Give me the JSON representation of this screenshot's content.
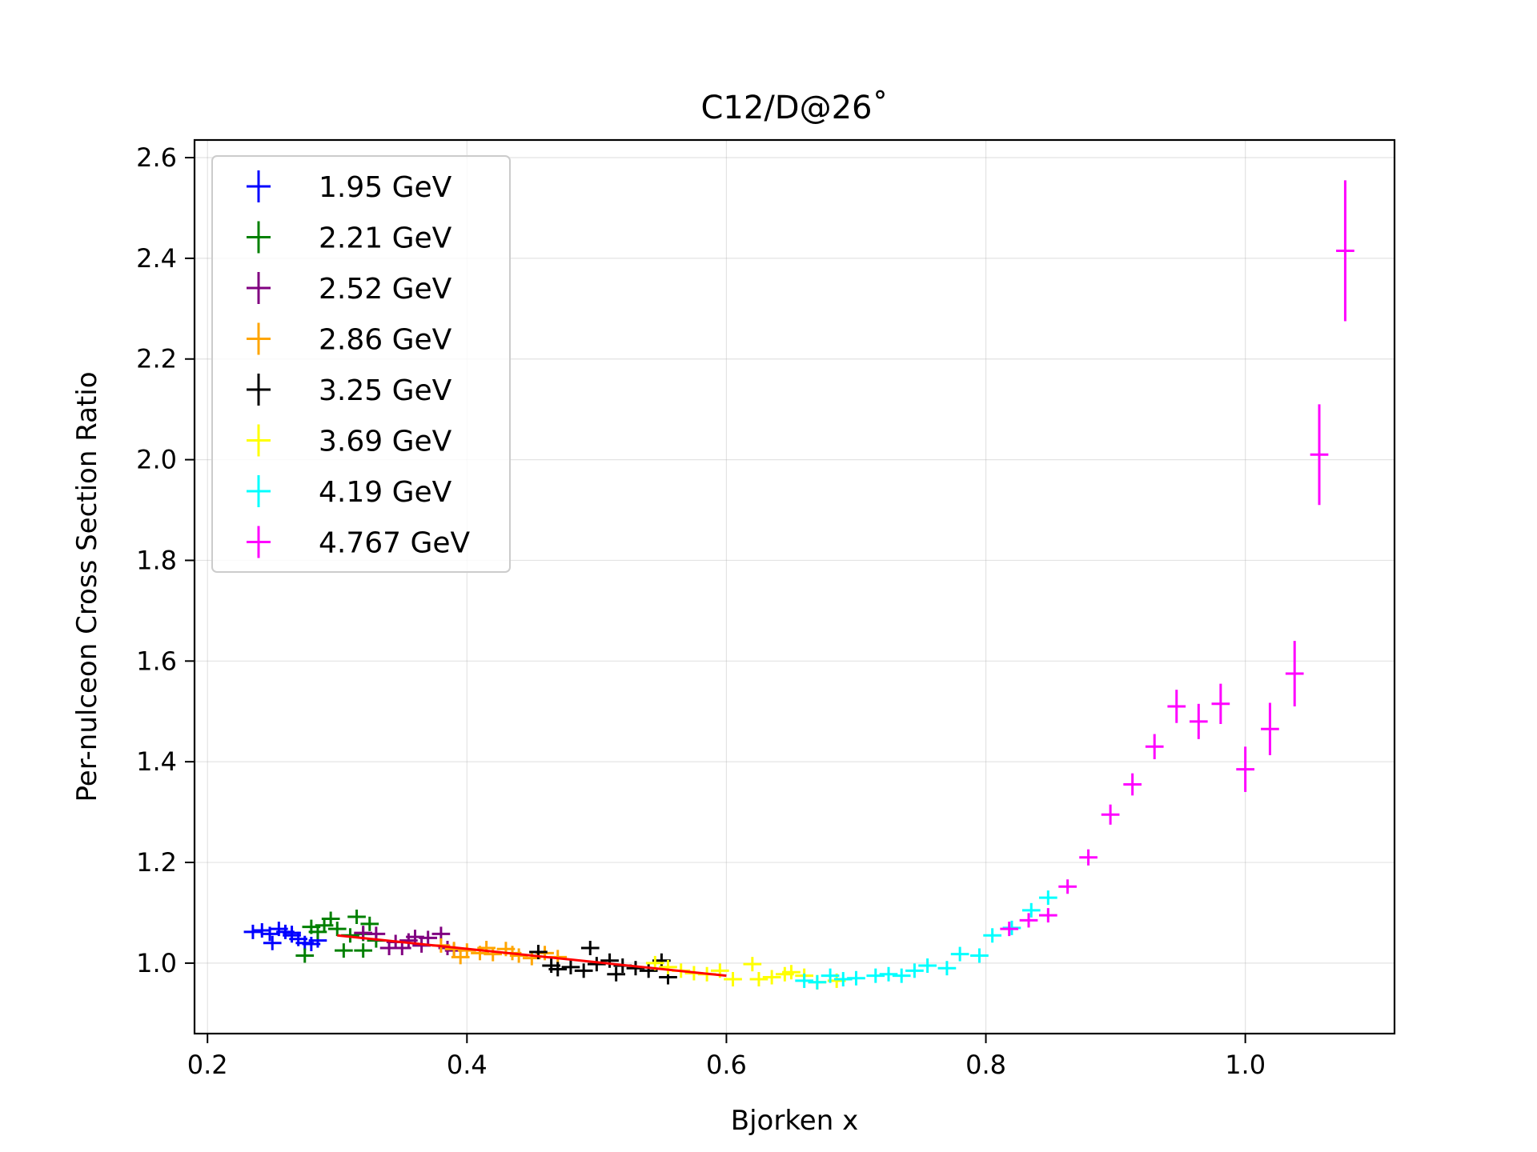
{
  "chart_data": {
    "type": "scatter",
    "title": "C12/D@26˚",
    "xlabel": "Bjorken x",
    "ylabel": "Per-nulceon Cross Section Ratio",
    "xlim": [
      0.19,
      1.115
    ],
    "ylim": [
      0.86,
      2.635
    ],
    "xticks": [
      0.2,
      0.4,
      0.6,
      0.8,
      1.0
    ],
    "xtick_labels": [
      "0.2",
      "0.4",
      "0.6",
      "0.8",
      "1.0"
    ],
    "yticks": [
      1.0,
      1.2,
      1.4,
      1.6,
      1.8,
      2.0,
      2.2,
      2.4,
      2.6
    ],
    "ytick_labels": [
      "1.0",
      "1.2",
      "1.4",
      "1.6",
      "1.8",
      "2.0",
      "2.2",
      "2.4",
      "2.6"
    ],
    "grid": true,
    "legend_position": "upper left",
    "fit_line": {
      "color": "#ff0000",
      "x": [
        0.3,
        0.6
      ],
      "y": [
        1.055,
        0.975
      ]
    },
    "series": [
      {
        "name": "1.95 GeV",
        "color": "#0000ff",
        "xerr": 0.007,
        "points": [
          [
            0.235,
            1.062,
            0.006
          ],
          [
            0.242,
            1.065,
            0.006
          ],
          [
            0.248,
            1.058,
            0.006
          ],
          [
            0.255,
            1.068,
            0.006
          ],
          [
            0.26,
            1.062,
            0.006
          ],
          [
            0.265,
            1.055,
            0.006
          ],
          [
            0.27,
            1.048,
            0.006
          ],
          [
            0.275,
            1.04,
            0.006
          ],
          [
            0.28,
            1.038,
            0.006
          ],
          [
            0.285,
            1.045,
            0.006
          ],
          [
            0.25,
            1.04,
            0.006
          ],
          [
            0.265,
            1.06,
            0.006
          ]
        ]
      },
      {
        "name": "2.21 GeV",
        "color": "#008000",
        "xerr": 0.007,
        "points": [
          [
            0.275,
            1.015,
            0.01
          ],
          [
            0.28,
            1.072,
            0.008
          ],
          [
            0.285,
            1.062,
            0.008
          ],
          [
            0.29,
            1.075,
            0.008
          ],
          [
            0.295,
            1.088,
            0.008
          ],
          [
            0.3,
            1.068,
            0.008
          ],
          [
            0.305,
            1.025,
            0.008
          ],
          [
            0.31,
            1.055,
            0.008
          ],
          [
            0.315,
            1.092,
            0.008
          ],
          [
            0.32,
            1.058,
            0.008
          ],
          [
            0.325,
            1.078,
            0.008
          ],
          [
            0.33,
            1.045,
            0.008
          ],
          [
            0.32,
            1.025,
            0.008
          ]
        ]
      },
      {
        "name": "2.52 GeV",
        "color": "#800080",
        "xerr": 0.007,
        "points": [
          [
            0.32,
            1.06,
            0.008
          ],
          [
            0.33,
            1.058,
            0.008
          ],
          [
            0.34,
            1.03,
            0.008
          ],
          [
            0.345,
            1.042,
            0.008
          ],
          [
            0.35,
            1.03,
            0.008
          ],
          [
            0.355,
            1.045,
            0.008
          ],
          [
            0.36,
            1.052,
            0.008
          ],
          [
            0.365,
            1.035,
            0.008
          ],
          [
            0.37,
            1.05,
            0.008
          ],
          [
            0.38,
            1.058,
            0.008
          ],
          [
            0.385,
            1.03,
            0.008
          ],
          [
            0.39,
            1.025,
            0.008
          ]
        ]
      },
      {
        "name": "2.86 GeV",
        "color": "#ffa500",
        "xerr": 0.007,
        "points": [
          [
            0.38,
            1.035,
            0.008
          ],
          [
            0.39,
            1.028,
            0.008
          ],
          [
            0.395,
            1.012,
            0.008
          ],
          [
            0.4,
            1.025,
            0.008
          ],
          [
            0.41,
            1.02,
            0.008
          ],
          [
            0.415,
            1.03,
            0.008
          ],
          [
            0.42,
            1.018,
            0.008
          ],
          [
            0.43,
            1.028,
            0.008
          ],
          [
            0.435,
            1.02,
            0.008
          ],
          [
            0.44,
            1.015,
            0.008
          ],
          [
            0.45,
            1.01,
            0.008
          ],
          [
            0.46,
            1.02,
            0.008
          ],
          [
            0.47,
            1.012,
            0.008
          ]
        ]
      },
      {
        "name": "3.25 GeV",
        "color": "#000000",
        "xerr": 0.007,
        "points": [
          [
            0.455,
            1.022,
            0.008
          ],
          [
            0.465,
            0.995,
            0.008
          ],
          [
            0.47,
            0.988,
            0.008
          ],
          [
            0.48,
            0.992,
            0.008
          ],
          [
            0.49,
            0.985,
            0.008
          ],
          [
            0.495,
            1.03,
            0.008
          ],
          [
            0.5,
            0.998,
            0.008
          ],
          [
            0.51,
            1.005,
            0.008
          ],
          [
            0.515,
            0.978,
            0.008
          ],
          [
            0.52,
            0.995,
            0.008
          ],
          [
            0.53,
            0.99,
            0.008
          ],
          [
            0.54,
            0.985,
            0.008
          ],
          [
            0.55,
            1.005,
            0.008
          ],
          [
            0.555,
            0.972,
            0.008
          ]
        ]
      },
      {
        "name": "3.69 GeV",
        "color": "#ffff00",
        "xerr": 0.007,
        "points": [
          [
            0.545,
            1.0,
            0.008
          ],
          [
            0.555,
            0.992,
            0.008
          ],
          [
            0.565,
            0.985,
            0.008
          ],
          [
            0.575,
            0.98,
            0.008
          ],
          [
            0.585,
            0.978,
            0.008
          ],
          [
            0.595,
            0.985,
            0.008
          ],
          [
            0.605,
            0.968,
            0.008
          ],
          [
            0.62,
            0.998,
            0.008
          ],
          [
            0.625,
            0.968,
            0.008
          ],
          [
            0.635,
            0.972,
            0.008
          ],
          [
            0.645,
            0.978,
            0.008
          ],
          [
            0.65,
            0.982,
            0.008
          ],
          [
            0.66,
            0.975,
            0.008
          ],
          [
            0.67,
            0.962,
            0.008
          ],
          [
            0.685,
            0.965,
            0.008
          ]
        ]
      },
      {
        "name": "4.19 GeV",
        "color": "#00ffff",
        "xerr": 0.007,
        "points": [
          [
            0.66,
            0.965,
            0.006
          ],
          [
            0.67,
            0.962,
            0.006
          ],
          [
            0.68,
            0.975,
            0.006
          ],
          [
            0.69,
            0.968,
            0.006
          ],
          [
            0.7,
            0.97,
            0.006
          ],
          [
            0.715,
            0.975,
            0.006
          ],
          [
            0.725,
            0.978,
            0.006
          ],
          [
            0.735,
            0.975,
            0.006
          ],
          [
            0.745,
            0.985,
            0.006
          ],
          [
            0.755,
            0.995,
            0.006
          ],
          [
            0.77,
            0.99,
            0.006
          ],
          [
            0.78,
            1.018,
            0.006
          ],
          [
            0.795,
            1.015,
            0.006
          ],
          [
            0.805,
            1.055,
            0.008
          ],
          [
            0.82,
            1.07,
            0.008
          ],
          [
            0.835,
            1.105,
            0.008
          ],
          [
            0.848,
            1.13,
            0.01
          ]
        ]
      },
      {
        "name": "4.767 GeV",
        "color": "#ff00ff",
        "xerr": 0.007,
        "points": [
          [
            0.818,
            1.068,
            0.01
          ],
          [
            0.833,
            1.085,
            0.01
          ],
          [
            0.848,
            1.095,
            0.012
          ],
          [
            0.863,
            1.152,
            0.014
          ],
          [
            0.879,
            1.21,
            0.016
          ],
          [
            0.896,
            1.295,
            0.02
          ],
          [
            0.913,
            1.355,
            0.022
          ],
          [
            0.93,
            1.43,
            0.025
          ],
          [
            0.947,
            1.51,
            0.033
          ],
          [
            0.964,
            1.48,
            0.035
          ],
          [
            0.981,
            1.515,
            0.04
          ],
          [
            1.0,
            1.385,
            0.045
          ],
          [
            1.019,
            1.465,
            0.052
          ],
          [
            1.038,
            1.575,
            0.065
          ],
          [
            1.057,
            2.01,
            0.1
          ],
          [
            1.077,
            2.415,
            0.14
          ]
        ]
      }
    ]
  }
}
